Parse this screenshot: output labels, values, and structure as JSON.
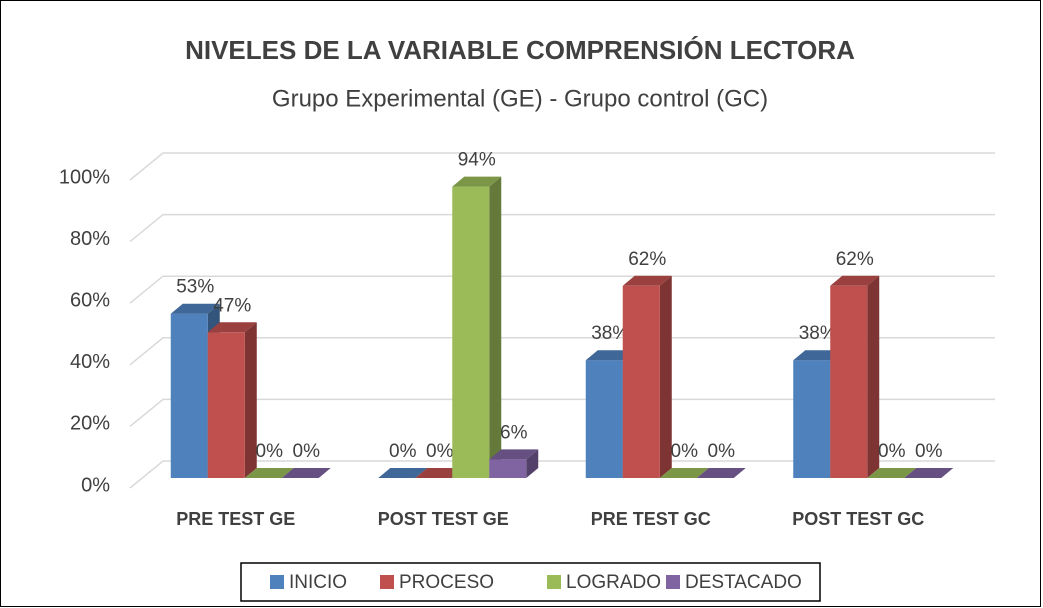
{
  "chart_data": {
    "type": "bar3d",
    "title": "NIVELES DE LA VARIABLE COMPRENSIÓN LECTORA",
    "subtitle": "Grupo Experimental (GE) - Grupo control (GC)",
    "categories": [
      "PRE TEST GE",
      "POST TEST GE",
      "PRE TEST GC",
      "POST TEST GC"
    ],
    "series": [
      {
        "name": "INICIO",
        "color": "#4f81bd",
        "values": [
          53,
          0,
          38,
          38
        ],
        "value_labels": [
          "53%",
          "0%",
          "38%",
          "38%"
        ]
      },
      {
        "name": "PROCESO",
        "color": "#c0504d",
        "values": [
          47,
          0,
          62,
          62
        ],
        "value_labels": [
          "47%",
          "0%",
          "62%",
          "62%"
        ]
      },
      {
        "name": "LOGRADO",
        "color": "#9bbb59",
        "values": [
          0,
          94,
          0,
          0
        ],
        "value_labels": [
          "0%",
          "94%",
          "0%",
          "0%"
        ]
      },
      {
        "name": "DESTACADO",
        "color": "#8064a2",
        "values": [
          0,
          6,
          0,
          0
        ],
        "value_labels": [
          "0%",
          "6%",
          "0%",
          "0%"
        ]
      }
    ],
    "ylim": [
      0,
      100
    ],
    "yticks": [
      {
        "value": 0,
        "label": "0%"
      },
      {
        "value": 20,
        "label": "20%"
      },
      {
        "value": 40,
        "label": "40%"
      },
      {
        "value": 60,
        "label": "60%"
      },
      {
        "value": 80,
        "label": "80%"
      },
      {
        "value": 100,
        "label": "100%"
      }
    ],
    "grid": true,
    "legend": "bottom"
  }
}
